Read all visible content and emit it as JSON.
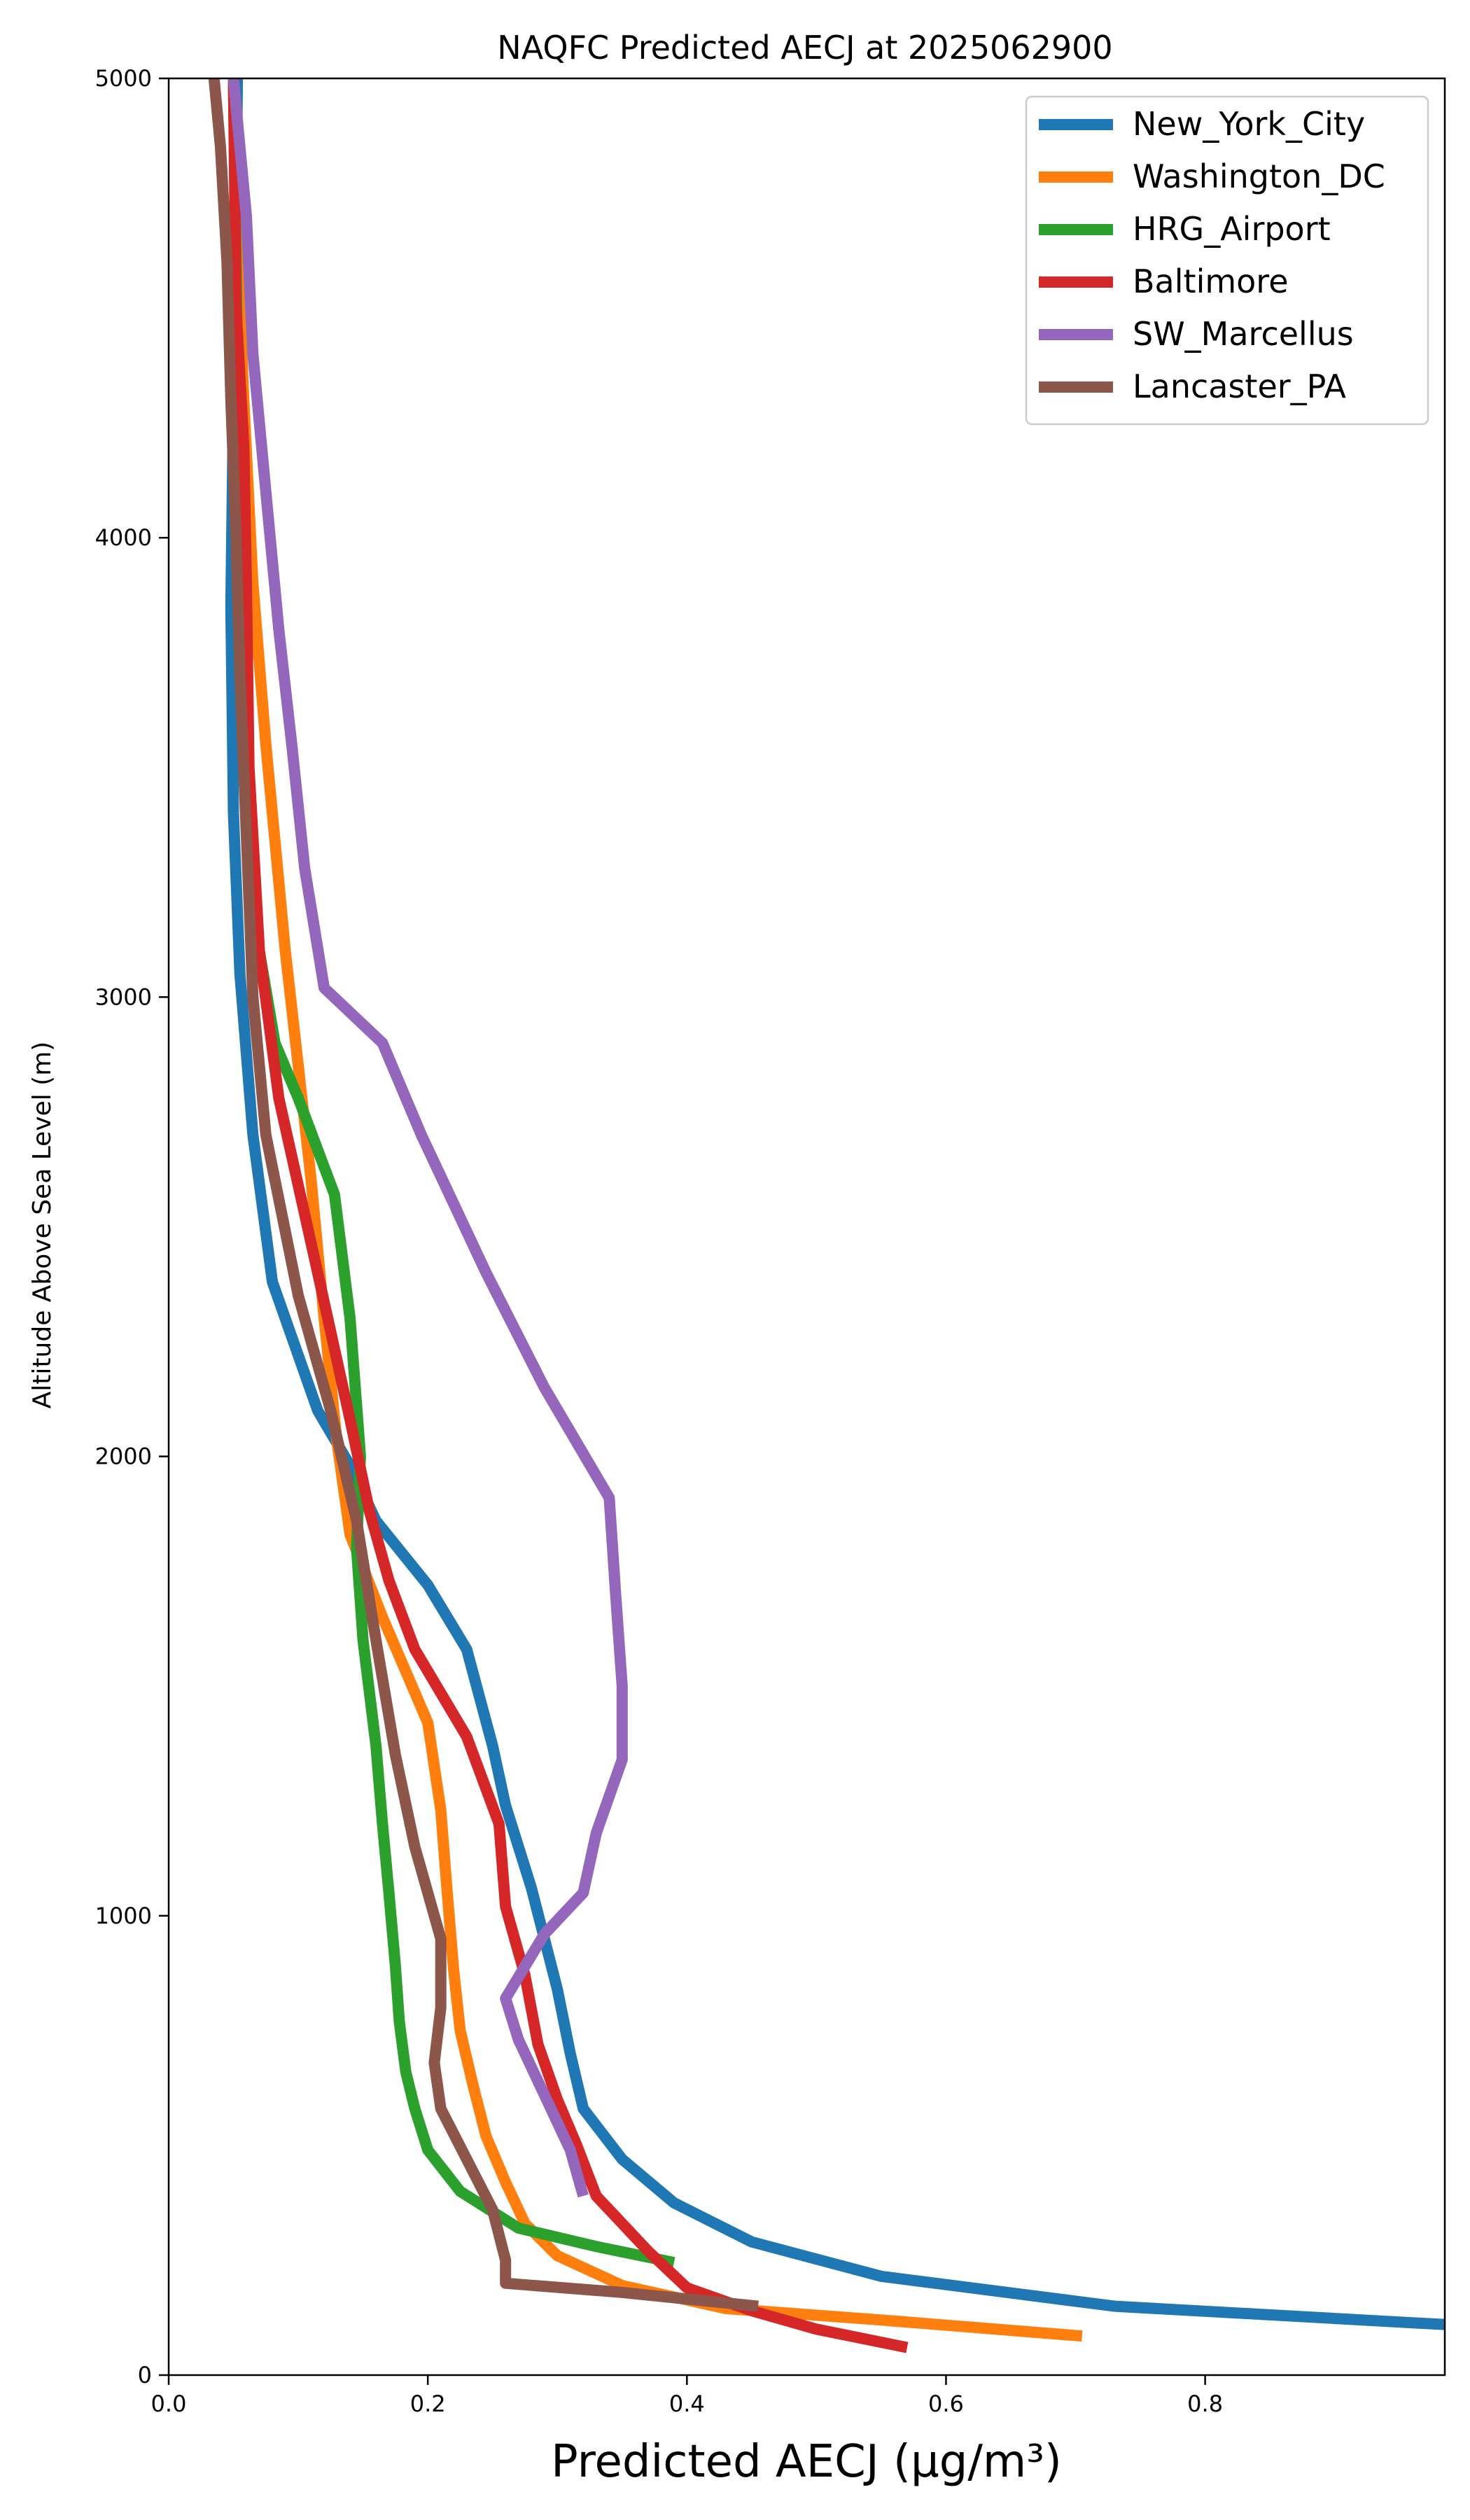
{
  "chart_data": {
    "type": "line",
    "title": "NAQFC Predicted AECJ at 2025062900",
    "xlabel": "Predicted AECJ (μg/m³)",
    "ylabel": "Altitude Above Sea Level (m)",
    "xlim": [
      0,
      0.985
    ],
    "ylim": [
      0,
      5000
    ],
    "x_ticks": [
      0.0,
      0.2,
      0.4,
      0.6,
      0.8
    ],
    "x_tick_labels": [
      "0.0",
      "0.2",
      "0.4",
      "0.6",
      "0.8"
    ],
    "y_ticks": [
      0,
      1000,
      2000,
      3000,
      4000,
      5000
    ],
    "y_tick_labels": [
      "0",
      "1000",
      "2000",
      "3000",
      "4000",
      "5000"
    ],
    "legend_position": "top-right",
    "grid": false,
    "series": [
      {
        "name": "New_York_City",
        "color": "#1f77b4",
        "points": [
          [
            0.985,
            110
          ],
          [
            0.73,
            150
          ],
          [
            0.55,
            215
          ],
          [
            0.45,
            290
          ],
          [
            0.39,
            375
          ],
          [
            0.35,
            470
          ],
          [
            0.32,
            580
          ],
          [
            0.31,
            700
          ],
          [
            0.3,
            840
          ],
          [
            0.28,
            1060
          ],
          [
            0.26,
            1240
          ],
          [
            0.25,
            1370
          ],
          [
            0.23,
            1580
          ],
          [
            0.2,
            1720
          ],
          [
            0.16,
            1860
          ],
          [
            0.14,
            1980
          ],
          [
            0.115,
            2100
          ],
          [
            0.08,
            2380
          ],
          [
            0.065,
            2700
          ],
          [
            0.055,
            3050
          ],
          [
            0.05,
            3400
          ],
          [
            0.048,
            3850
          ],
          [
            0.05,
            4300
          ],
          [
            0.052,
            4700
          ],
          [
            0.053,
            5000
          ]
        ]
      },
      {
        "name": "Washington_DC",
        "color": "#ff7f0e",
        "points": [
          [
            0.705,
            85
          ],
          [
            0.55,
            120
          ],
          [
            0.43,
            145
          ],
          [
            0.35,
            195
          ],
          [
            0.3,
            260
          ],
          [
            0.275,
            330
          ],
          [
            0.26,
            420
          ],
          [
            0.245,
            520
          ],
          [
            0.235,
            630
          ],
          [
            0.225,
            750
          ],
          [
            0.22,
            880
          ],
          [
            0.215,
            1050
          ],
          [
            0.21,
            1230
          ],
          [
            0.2,
            1420
          ],
          [
            0.165,
            1650
          ],
          [
            0.14,
            1830
          ],
          [
            0.13,
            2030
          ],
          [
            0.12,
            2300
          ],
          [
            0.11,
            2600
          ],
          [
            0.09,
            3100
          ],
          [
            0.075,
            3550
          ],
          [
            0.065,
            3900
          ],
          [
            0.058,
            4300
          ],
          [
            0.052,
            4700
          ],
          [
            0.05,
            5000
          ]
        ]
      },
      {
        "name": "HRG_Airport",
        "color": "#2ca02c",
        "points": [
          [
            0.39,
            245
          ],
          [
            0.33,
            280
          ],
          [
            0.27,
            320
          ],
          [
            0.225,
            400
          ],
          [
            0.2,
            490
          ],
          [
            0.19,
            580
          ],
          [
            0.183,
            660
          ],
          [
            0.178,
            770
          ],
          [
            0.175,
            890
          ],
          [
            0.17,
            1050
          ],
          [
            0.165,
            1200
          ],
          [
            0.16,
            1370
          ],
          [
            0.15,
            1600
          ],
          [
            0.145,
            1800
          ],
          [
            0.148,
            2000
          ],
          [
            0.14,
            2300
          ],
          [
            0.128,
            2570
          ],
          [
            0.1,
            2780
          ],
          [
            0.082,
            2900
          ],
          [
            0.07,
            3100
          ],
          [
            0.06,
            3400
          ],
          [
            0.056,
            3800
          ],
          [
            0.054,
            4200
          ],
          [
            0.052,
            4600
          ],
          [
            0.05,
            5000
          ]
        ]
      },
      {
        "name": "Baltimore",
        "color": "#d62728",
        "points": [
          [
            0.57,
            60
          ],
          [
            0.5,
            100
          ],
          [
            0.45,
            140
          ],
          [
            0.4,
            190
          ],
          [
            0.37,
            270
          ],
          [
            0.33,
            390
          ],
          [
            0.315,
            500
          ],
          [
            0.3,
            600
          ],
          [
            0.285,
            720
          ],
          [
            0.275,
            870
          ],
          [
            0.26,
            1020
          ],
          [
            0.255,
            1200
          ],
          [
            0.23,
            1390
          ],
          [
            0.19,
            1580
          ],
          [
            0.17,
            1730
          ],
          [
            0.155,
            1880
          ],
          [
            0.14,
            2080
          ],
          [
            0.115,
            2400
          ],
          [
            0.085,
            2780
          ],
          [
            0.07,
            3100
          ],
          [
            0.062,
            3500
          ],
          [
            0.06,
            3900
          ],
          [
            0.058,
            4200
          ],
          [
            0.052,
            4500
          ],
          [
            0.05,
            5000
          ]
        ]
      },
      {
        "name": "SW_Marcellus",
        "color": "#9467bd",
        "points": [
          [
            0.32,
            390
          ],
          [
            0.31,
            490
          ],
          [
            0.29,
            610
          ],
          [
            0.27,
            730
          ],
          [
            0.26,
            820
          ],
          [
            0.29,
            960
          ],
          [
            0.32,
            1050
          ],
          [
            0.33,
            1180
          ],
          [
            0.35,
            1340
          ],
          [
            0.35,
            1500
          ],
          [
            0.345,
            1700
          ],
          [
            0.34,
            1910
          ],
          [
            0.29,
            2150
          ],
          [
            0.245,
            2400
          ],
          [
            0.195,
            2700
          ],
          [
            0.165,
            2900
          ],
          [
            0.12,
            3020
          ],
          [
            0.105,
            3280
          ],
          [
            0.095,
            3550
          ],
          [
            0.085,
            3800
          ],
          [
            0.075,
            4100
          ],
          [
            0.065,
            4400
          ],
          [
            0.06,
            4700
          ],
          [
            0.05,
            5000
          ]
        ]
      },
      {
        "name": "Lancaster_PA",
        "color": "#8c564b",
        "points": [
          [
            0.455,
            150
          ],
          [
            0.35,
            180
          ],
          [
            0.26,
            200
          ],
          [
            0.26,
            250
          ],
          [
            0.25,
            360
          ],
          [
            0.23,
            470
          ],
          [
            0.21,
            580
          ],
          [
            0.205,
            680
          ],
          [
            0.21,
            800
          ],
          [
            0.21,
            950
          ],
          [
            0.19,
            1150
          ],
          [
            0.175,
            1350
          ],
          [
            0.16,
            1600
          ],
          [
            0.145,
            1860
          ],
          [
            0.125,
            2100
          ],
          [
            0.1,
            2350
          ],
          [
            0.075,
            2700
          ],
          [
            0.065,
            3000
          ],
          [
            0.06,
            3350
          ],
          [
            0.055,
            3700
          ],
          [
            0.052,
            4000
          ],
          [
            0.048,
            4300
          ],
          [
            0.045,
            4600
          ],
          [
            0.04,
            4850
          ],
          [
            0.035,
            5000
          ]
        ]
      }
    ]
  }
}
